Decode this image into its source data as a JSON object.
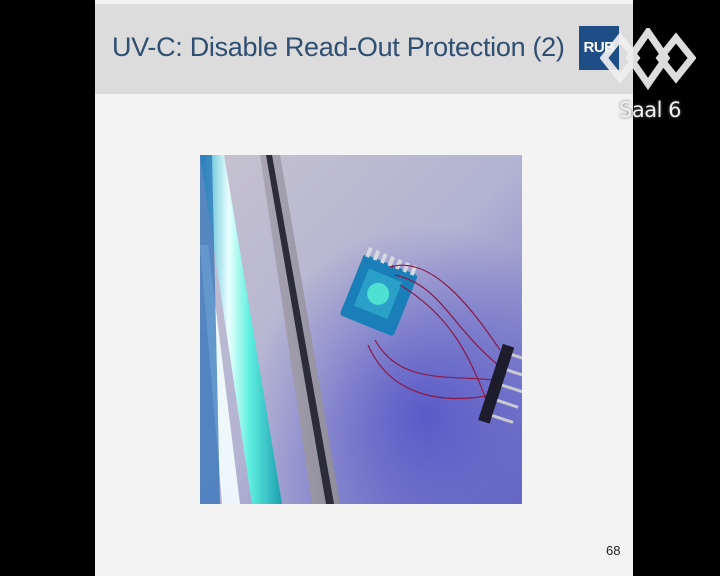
{
  "slide": {
    "title": "UV-C: Disable Read-Out Protection (2)",
    "logo_text": "RUB",
    "page_number": "68",
    "photo_icon": "uv-lamp-chip-photo"
  },
  "overlay": {
    "channel_logo_icon": "ccc-diamond-logo-icon",
    "channel_name": "Saal 6"
  },
  "colors": {
    "title": "#2f4e72",
    "title_bar": "#dcdcdc",
    "slide_bg": "#f3f3f3",
    "logo_bg": "#1d4f86",
    "uv_cyan": "#3fe2d8"
  }
}
